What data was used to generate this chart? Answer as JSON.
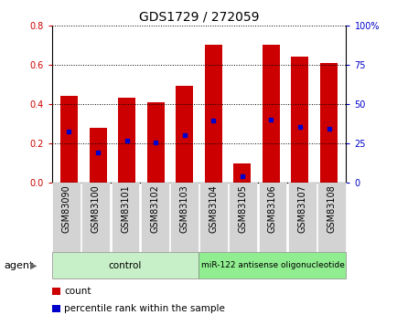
{
  "title": "GDS1729 / 272059",
  "samples": [
    "GSM83090",
    "GSM83100",
    "GSM83101",
    "GSM83102",
    "GSM83103",
    "GSM83104",
    "GSM83105",
    "GSM83106",
    "GSM83107",
    "GSM83108"
  ],
  "count_values": [
    0.44,
    0.28,
    0.43,
    0.41,
    0.49,
    0.7,
    0.1,
    0.7,
    0.64,
    0.61
  ],
  "percentile_values": [
    0.26,
    0.155,
    0.215,
    0.205,
    0.24,
    0.315,
    0.035,
    0.32,
    0.285,
    0.275
  ],
  "left_ylim": [
    0,
    0.8
  ],
  "right_ylim": [
    0,
    100
  ],
  "left_yticks": [
    0,
    0.2,
    0.4,
    0.6,
    0.8
  ],
  "right_yticks": [
    0,
    25,
    50,
    75,
    100
  ],
  "bar_color": "#cc0000",
  "dot_color": "#0000cc",
  "bar_width": 0.6,
  "control_label": "control",
  "treatment_label": "miR-122 antisense oligonucleotide",
  "agent_label": "agent",
  "control_bg": "#c8f0c8",
  "treatment_bg": "#90ee90",
  "tick_label_bg": "#d3d3d3",
  "legend_count_label": "count",
  "legend_percentile_label": "percentile rank within the sample",
  "title_fontsize": 10,
  "tick_fontsize": 7,
  "label_fontsize": 7.5,
  "agent_fontsize": 8
}
